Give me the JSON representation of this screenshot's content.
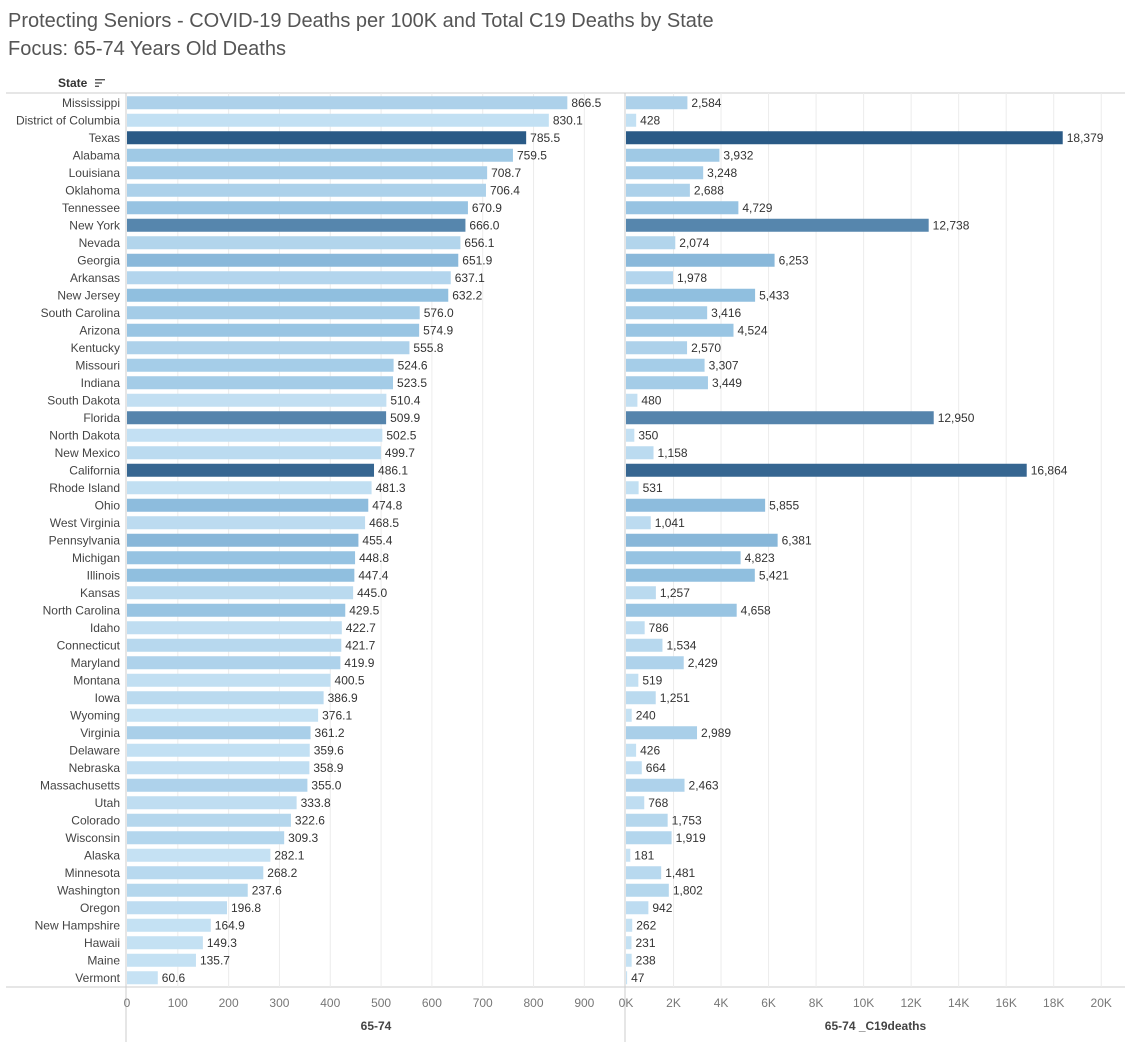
{
  "title": "Protecting Seniors - COVID-19 Deaths per 100K and Total C19 Deaths by State",
  "subtitle": "Focus: 65-74 Years Old Deaths",
  "row_header": "State",
  "row_header_icon": "sort-descending-icon",
  "chart_data": [
    {
      "type": "bar",
      "orientation": "horizontal",
      "xlabel": "65-74",
      "xlim": [
        0,
        980
      ],
      "ticks": [
        0,
        100,
        200,
        300,
        400,
        500,
        600,
        700,
        800,
        900
      ],
      "tick_labels": [
        "0",
        "100",
        "200",
        "300",
        "400",
        "500",
        "600",
        "700",
        "800",
        "900"
      ],
      "value_format": "decimal1",
      "categories": [
        "Mississippi",
        "District of Columbia",
        "Texas",
        "Alabama",
        "Louisiana",
        "Oklahoma",
        "Tennessee",
        "New York",
        "Nevada",
        "Georgia",
        "Arkansas",
        "New Jersey",
        "South Carolina",
        "Arizona",
        "Kentucky",
        "Missouri",
        "Indiana",
        "South Dakota",
        "Florida",
        "North Dakota",
        "New Mexico",
        "California",
        "Rhode Island",
        "Ohio",
        "West Virginia",
        "Pennsylvania",
        "Michigan",
        "Illinois",
        "Kansas",
        "North Carolina",
        "Idaho",
        "Connecticut",
        "Maryland",
        "Montana",
        "Iowa",
        "Wyoming",
        "Virginia",
        "Delaware",
        "Nebraska",
        "Massachusetts",
        "Utah",
        "Colorado",
        "Wisconsin",
        "Alaska",
        "Minnesota",
        "Washington",
        "Oregon",
        "New Hampshire",
        "Hawaii",
        "Maine",
        "Vermont"
      ],
      "values": [
        866.5,
        830.1,
        785.5,
        759.5,
        708.7,
        706.4,
        670.9,
        666.0,
        656.1,
        651.9,
        637.1,
        632.2,
        576.0,
        574.9,
        555.8,
        524.6,
        523.5,
        510.4,
        509.9,
        502.5,
        499.7,
        486.1,
        481.3,
        474.8,
        468.5,
        455.4,
        448.8,
        447.4,
        445.0,
        429.5,
        422.7,
        421.7,
        419.9,
        400.5,
        386.9,
        376.1,
        361.2,
        359.6,
        358.9,
        355.0,
        333.8,
        322.6,
        309.3,
        282.1,
        268.2,
        237.6,
        196.8,
        164.9,
        149.3,
        135.7,
        60.6
      ],
      "color_encoding": "total deaths (darker = more)"
    },
    {
      "type": "bar",
      "orientation": "horizontal",
      "xlabel": "65-74 _C19deaths",
      "xlim": [
        0,
        21000
      ],
      "ticks": [
        0,
        2000,
        4000,
        6000,
        8000,
        10000,
        12000,
        14000,
        16000,
        18000,
        20000
      ],
      "tick_labels": [
        "0K",
        "2K",
        "4K",
        "6K",
        "8K",
        "10K",
        "12K",
        "14K",
        "16K",
        "18K",
        "20K"
      ],
      "value_format": "thousands",
      "values": [
        2584,
        428,
        18379,
        3932,
        3248,
        2688,
        4729,
        12738,
        2074,
        6253,
        1978,
        5433,
        3416,
        4524,
        2570,
        3307,
        3449,
        480,
        12950,
        350,
        1158,
        16864,
        531,
        5855,
        1041,
        6381,
        4823,
        5421,
        1257,
        4658,
        786,
        1534,
        2429,
        519,
        1251,
        240,
        2989,
        426,
        664,
        2463,
        768,
        1753,
        1919,
        181,
        1481,
        1802,
        942,
        262,
        231,
        238,
        47
      ]
    }
  ],
  "color_scale": {
    "min_value": 47,
    "max_value": 18379,
    "light": "#c6e2f4",
    "mid": "#8fbedf",
    "dark": "#2a5a86"
  },
  "gridline_color": "#ececec",
  "axis_color": "#cccccc"
}
